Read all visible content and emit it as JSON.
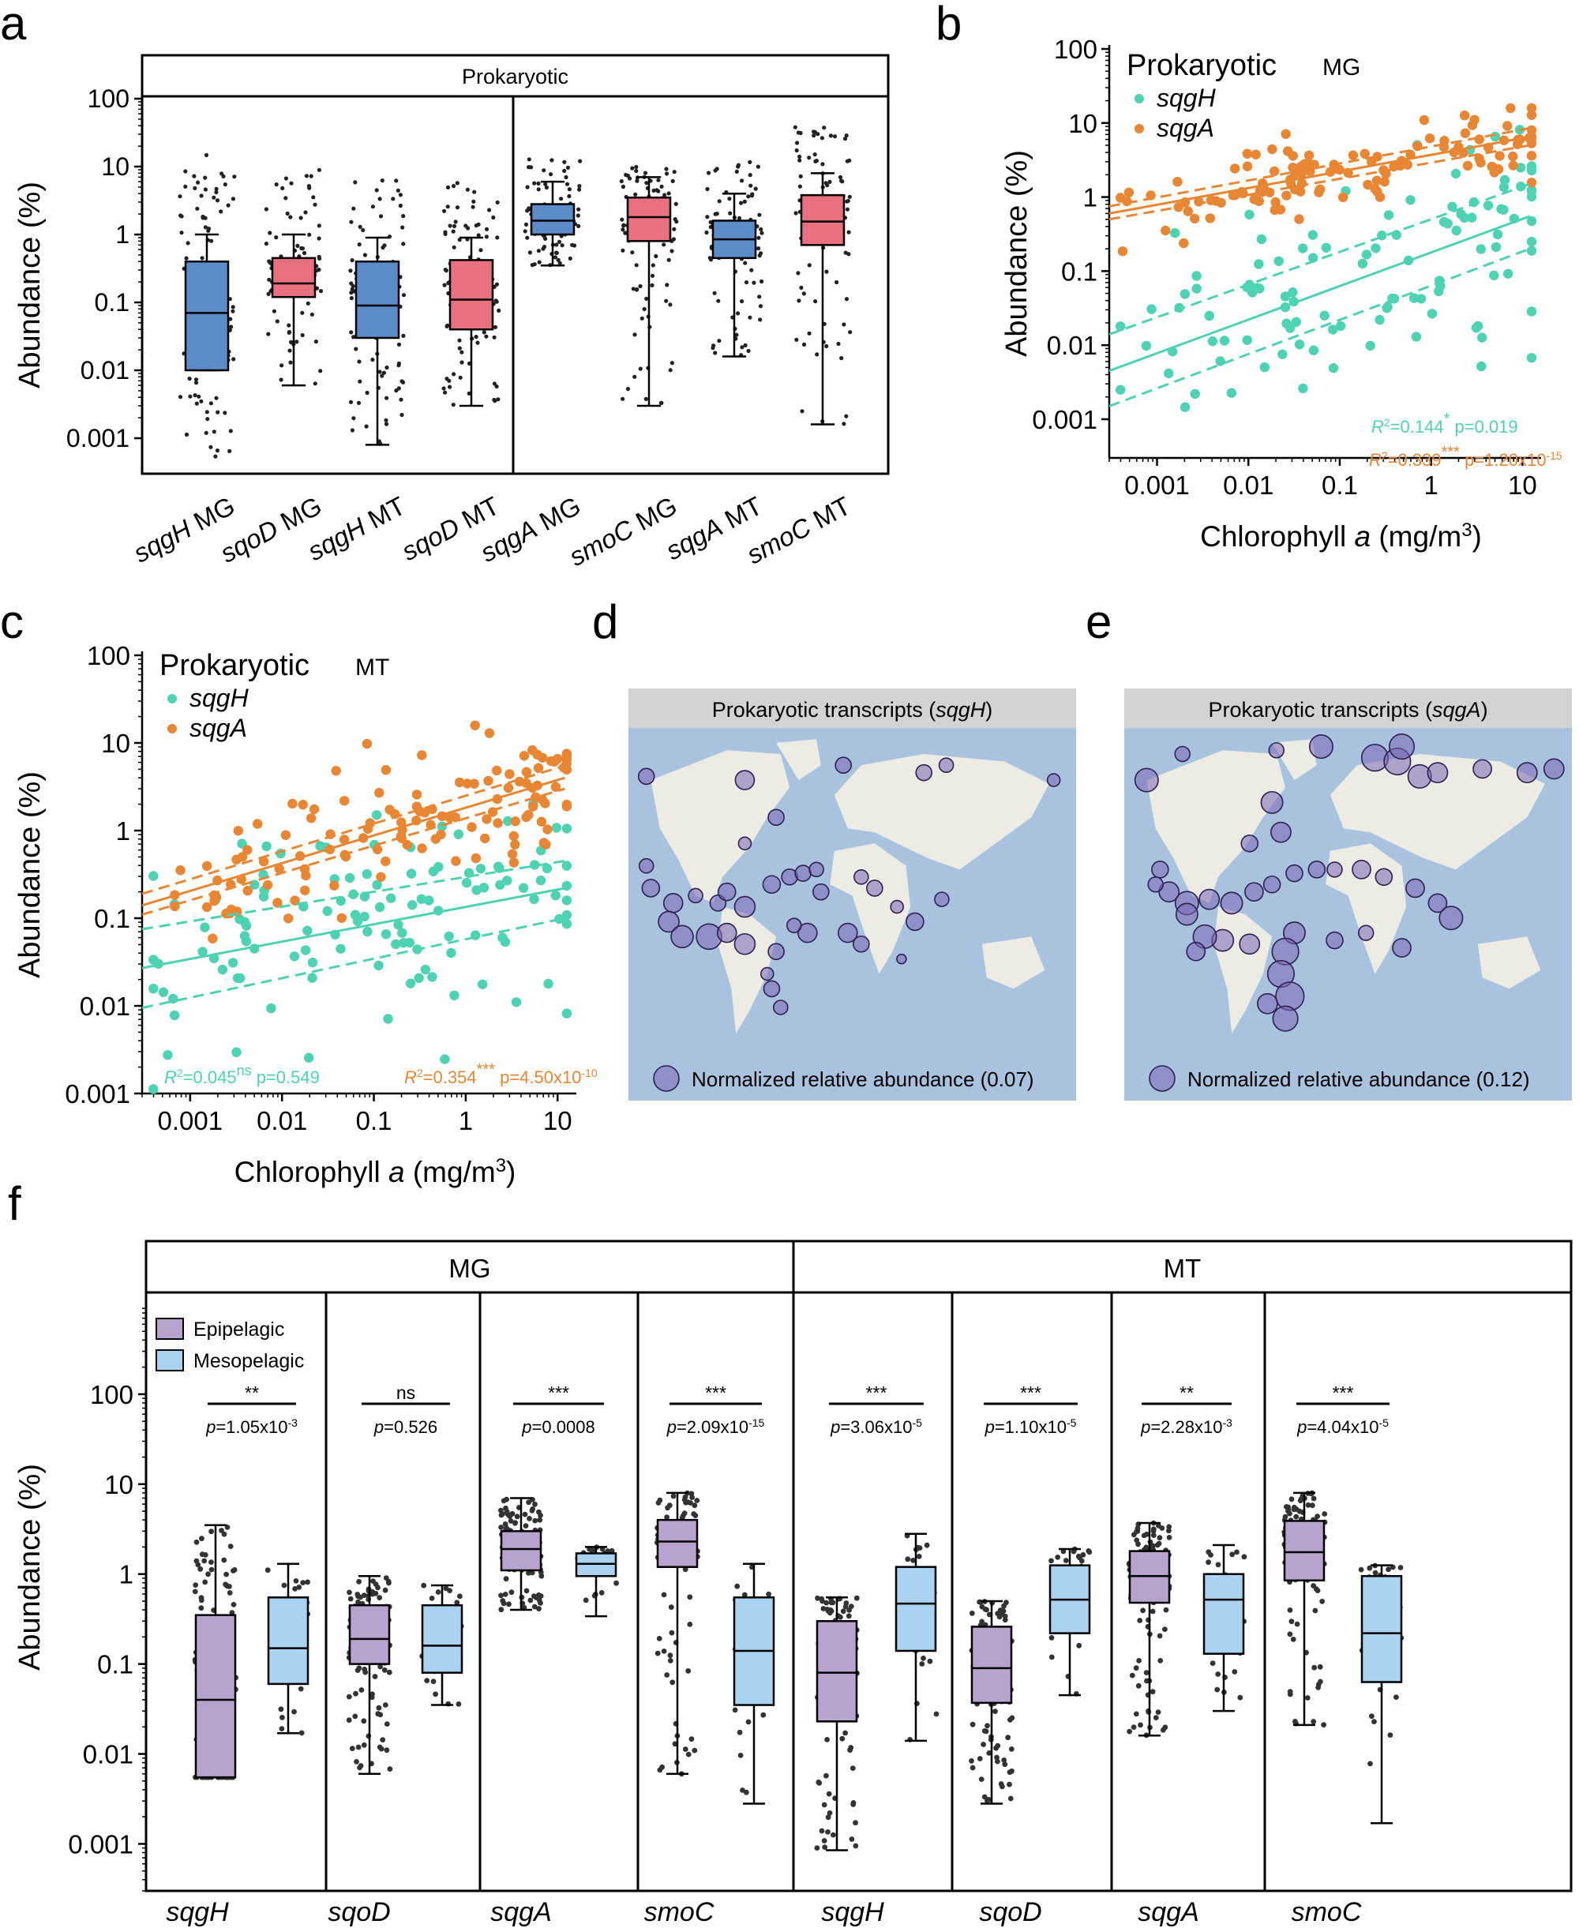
{
  "colors": {
    "blue_box": "#5B8CC8",
    "pink_box": "#E8707F",
    "teal": "#4ED3B2",
    "orange": "#E88633",
    "purple_box": "#B8A3CE",
    "lightblue_box": "#A9D3F1",
    "ocean": "#A9C3DE",
    "land": "#ECECE4",
    "bubble": "#7A66B5",
    "map_header": "#D3D3D3"
  },
  "panel_labels": {
    "a": "a",
    "b": "b",
    "c": "c",
    "d": "d",
    "e": "e",
    "f": "f"
  },
  "chart_data": [
    {
      "panel": "a",
      "type": "box",
      "strip_title": "Prokaryotic",
      "ylabel": "Abundance (%)",
      "yscale": "log",
      "ylim": [
        0.0003,
        100
      ],
      "yticks": [
        "100",
        "10",
        "1",
        "0.1",
        "0.01",
        "0.001"
      ],
      "boxes": [
        {
          "label_italic": "sqgH",
          "label_rest": " MG",
          "color": "blue",
          "q1": 0.01,
          "median": 0.07,
          "q3": 0.4,
          "whisker_low": 0.01,
          "whisker_high": 1.0,
          "min": 0.0005,
          "max": 15
        },
        {
          "label_italic": "sqoD",
          "label_rest": " MG",
          "color": "pink",
          "q1": 0.12,
          "median": 0.19,
          "q3": 0.45,
          "whisker_low": 0.006,
          "whisker_high": 1.0,
          "min": 0.006,
          "max": 10
        },
        {
          "label_italic": "sqgH",
          "label_rest": " MT",
          "color": "blue",
          "q1": 0.03,
          "median": 0.09,
          "q3": 0.4,
          "whisker_low": 0.0008,
          "whisker_high": 0.9,
          "min": 0.0008,
          "max": 7
        },
        {
          "label_italic": "sqoD",
          "label_rest": " MT",
          "color": "pink",
          "q1": 0.04,
          "median": 0.11,
          "q3": 0.42,
          "whisker_low": 0.003,
          "whisker_high": 0.9,
          "min": 0.003,
          "max": 6
        },
        {
          "label_italic": "sqgA",
          "label_rest": " MG",
          "color": "blue",
          "q1": 1.0,
          "median": 1.6,
          "q3": 2.8,
          "whisker_low": 0.35,
          "whisker_high": 6,
          "min": 0.35,
          "max": 14
        },
        {
          "label_italic": "smoC",
          "label_rest": " MG",
          "color": "pink",
          "q1": 0.8,
          "median": 1.8,
          "q3": 3.5,
          "whisker_low": 0.003,
          "whisker_high": 7,
          "min": 0.003,
          "max": 10
        },
        {
          "label_italic": "sqgA",
          "label_rest": " MT",
          "color": "blue",
          "q1": 0.45,
          "median": 0.85,
          "q3": 1.6,
          "whisker_low": 0.016,
          "whisker_high": 4,
          "min": 0.016,
          "max": 12
        },
        {
          "label_italic": "smoC",
          "label_rest": " MT",
          "color": "pink",
          "q1": 0.7,
          "median": 1.55,
          "q3": 3.8,
          "whisker_low": 0.0016,
          "whisker_high": 8,
          "min": 0.0016,
          "max": 40
        }
      ]
    },
    {
      "panel": "b",
      "type": "scatter",
      "title": "Prokaryotic",
      "subtitle": "MG",
      "xlabel_main": "Chlorophyll ",
      "xlabel_italic": "a",
      "xlabel_unit": " (mg/m",
      "xlabel_sup": "3",
      "xlabel_end": ")",
      "ylabel": "Abundance (%)",
      "xscale": "log",
      "yscale": "log",
      "xlim": [
        0.0003,
        16
      ],
      "ylim": [
        0.0003,
        100
      ],
      "xticks": [
        "0.001",
        "0.01",
        "0.1",
        "1",
        "10"
      ],
      "yticks": [
        "100",
        "10",
        "1",
        "0.1",
        "0.01",
        "0.001"
      ],
      "series": [
        {
          "name": "sqgH",
          "color": "teal",
          "fit": {
            "x0": 0.0003,
            "y0": 0.0045,
            "x1": 12,
            "y1": 0.55
          },
          "ci_low": {
            "y0": 0.0015,
            "y1": 0.2
          },
          "ci_high": {
            "y0": 0.014,
            "y1": 1.5
          }
        },
        {
          "name": "sqgA",
          "color": "orange",
          "fit": {
            "x0": 0.0003,
            "y0": 0.6,
            "x1": 12,
            "y1": 6.5
          },
          "ci_low": {
            "y0": 0.5,
            "y1": 5
          },
          "ci_high": {
            "y0": 0.75,
            "y1": 8.5
          }
        }
      ],
      "stats": [
        {
          "r2_prefix": "R",
          "r2_sup": "2",
          "r2_value": "=0.144",
          "sig": "*",
          "p_text": "p=0.019",
          "p_sup": "",
          "color": "teal"
        },
        {
          "r2_prefix": "R",
          "r2_sup": "2",
          "r2_value": "=0.339",
          "sig": "***",
          "p_text": "p=1.20x10",
          "p_sup": "-15",
          "color": "orange"
        }
      ]
    },
    {
      "panel": "c",
      "type": "scatter",
      "title": "Prokaryotic",
      "subtitle": "MT",
      "xlabel_main": "Chlorophyll ",
      "xlabel_italic": "a",
      "xlabel_unit": " (mg/m",
      "xlabel_sup": "3",
      "xlabel_end": ")",
      "ylabel": "Abundance (%)",
      "xscale": "log",
      "yscale": "log",
      "xlim": [
        0.0003,
        16
      ],
      "ylim": [
        0.001,
        100
      ],
      "xticks": [
        "0.001",
        "0.01",
        "0.1",
        "1",
        "10"
      ],
      "yticks": [
        "100",
        "10",
        "1",
        "0.1",
        "0.01",
        "0.001"
      ],
      "series": [
        {
          "name": "sqgH",
          "color": "teal",
          "fit": {
            "x0": 0.0003,
            "y0": 0.027,
            "x1": 12,
            "y1": 0.22
          },
          "ci_low": {
            "y0": 0.0095,
            "y1": 0.1
          },
          "ci_high": {
            "y0": 0.075,
            "y1": 0.45
          }
        },
        {
          "name": "sqgA",
          "color": "orange",
          "fit": {
            "x0": 0.0003,
            "y0": 0.14,
            "x1": 12,
            "y1": 4
          },
          "ci_low": {
            "y0": 0.11,
            "y1": 3
          },
          "ci_high": {
            "y0": 0.19,
            "y1": 5.5
          }
        }
      ],
      "stats": [
        {
          "r2_prefix": "R",
          "r2_sup": "2",
          "r2_value": "=0.045",
          "sig": "ns",
          "p_text": "p=0.549",
          "p_sup": "",
          "color": "teal"
        },
        {
          "r2_prefix": "R",
          "r2_sup": "2",
          "r2_value": "=0.354",
          "sig": "***",
          "p_text": "p=4.50x10",
          "p_sup": "-10",
          "color": "orange"
        }
      ]
    },
    {
      "panel": "d",
      "type": "map",
      "title_main": "Prokaryotic transcripts (",
      "title_italic": "sqgH",
      "title_end": ")",
      "legend": "Normalized relative abundance (0.07)"
    },
    {
      "panel": "e",
      "type": "map",
      "title_main": "Prokaryotic transcripts (",
      "title_italic": "sqgA",
      "title_end": ")",
      "legend": "Normalized relative abundance (0.12)"
    },
    {
      "panel": "f",
      "type": "box",
      "ylabel": "Abundance (%)",
      "yscale": "log",
      "ylim": [
        0.0003,
        1000
      ],
      "yticks": [
        "100",
        "10",
        "1",
        "0.1",
        "0.01",
        "0.001"
      ],
      "groups": [
        "MG",
        "MT"
      ],
      "legend": [
        "Epipelagic",
        "Mesopelagic"
      ],
      "genes": [
        {
          "group": "MG",
          "name": "sqgH",
          "sig": "**",
          "p": "p=1.05x10",
          "p_sup": "-3",
          "epi": {
            "q1": 0.0055,
            "median": 0.04,
            "q3": 0.35,
            "wl": 0.0055,
            "wh": 3.5
          },
          "meso": {
            "q1": 0.06,
            "median": 0.15,
            "q3": 0.55,
            "wl": 0.017,
            "wh": 1.3
          }
        },
        {
          "group": "MG",
          "name": "sqoD",
          "sig": "ns",
          "p": "p=0.526",
          "p_sup": "",
          "epi": {
            "q1": 0.1,
            "median": 0.19,
            "q3": 0.45,
            "wl": 0.006,
            "wh": 0.95
          },
          "meso": {
            "q1": 0.08,
            "median": 0.16,
            "q3": 0.45,
            "wl": 0.035,
            "wh": 0.75
          }
        },
        {
          "group": "MG",
          "name": "sqgA",
          "sig": "***",
          "p": "p=0.0008",
          "p_sup": "",
          "epi": {
            "q1": 1.1,
            "median": 1.9,
            "q3": 3.0,
            "wl": 0.4,
            "wh": 7
          },
          "meso": {
            "q1": 0.95,
            "median": 1.3,
            "q3": 1.7,
            "wl": 0.34,
            "wh": 2.0
          }
        },
        {
          "group": "MG",
          "name": "smoC",
          "sig": "***",
          "p": "p=2.09x10",
          "p_sup": "-15",
          "epi": {
            "q1": 1.2,
            "median": 2.3,
            "q3": 4.0,
            "wl": 0.006,
            "wh": 8
          },
          "meso": {
            "q1": 0.035,
            "median": 0.14,
            "q3": 0.55,
            "wl": 0.0028,
            "wh": 1.3
          }
        },
        {
          "group": "MT",
          "name": "sqgH",
          "sig": "***",
          "p": "p=3.06x10",
          "p_sup": "-5",
          "epi": {
            "q1": 0.023,
            "median": 0.08,
            "q3": 0.3,
            "wl": 0.00085,
            "wh": 0.55
          },
          "meso": {
            "q1": 0.14,
            "median": 0.47,
            "q3": 1.2,
            "wl": 0.014,
            "wh": 2.8
          }
        },
        {
          "group": "MT",
          "name": "sqoD",
          "sig": "***",
          "p": "p=1.10x10",
          "p_sup": "-5",
          "epi": {
            "q1": 0.037,
            "median": 0.09,
            "q3": 0.26,
            "wl": 0.0028,
            "wh": 0.5
          },
          "meso": {
            "q1": 0.22,
            "median": 0.52,
            "q3": 1.25,
            "wl": 0.045,
            "wh": 1.9
          }
        },
        {
          "group": "MT",
          "name": "sqgA",
          "sig": "**",
          "p": "p=2.28x10",
          "p_sup": "-3",
          "epi": {
            "q1": 0.48,
            "median": 0.95,
            "q3": 1.8,
            "wl": 0.016,
            "wh": 3.7
          },
          "meso": {
            "q1": 0.13,
            "median": 0.52,
            "q3": 1.0,
            "wl": 0.03,
            "wh": 2.1
          }
        },
        {
          "group": "MT",
          "name": "smoC",
          "sig": "***",
          "p": "p=4.04x10",
          "p_sup": "-5",
          "epi": {
            "q1": 0.85,
            "median": 1.75,
            "q3": 3.9,
            "wl": 0.021,
            "wh": 8
          },
          "meso": {
            "q1": 0.063,
            "median": 0.22,
            "q3": 0.95,
            "wl": 0.0017,
            "wh": 1.25
          }
        }
      ]
    }
  ]
}
